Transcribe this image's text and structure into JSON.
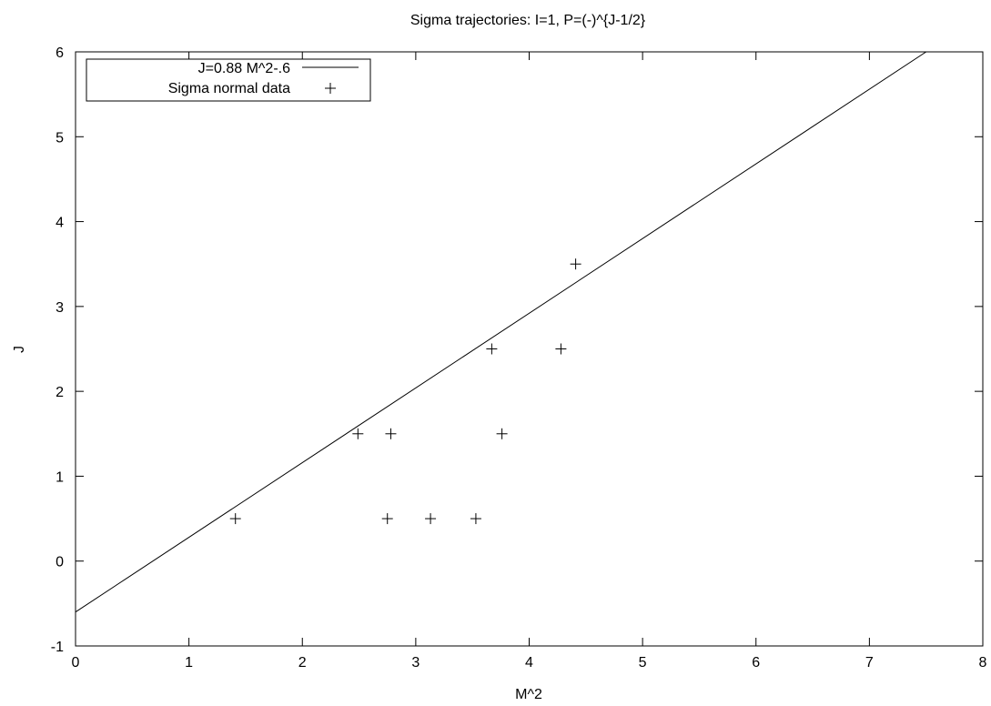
{
  "chart_data": {
    "type": "scatter",
    "title": "Sigma trajectories: I=1, P=(-)^{J-1/2}",
    "xlabel": "M^2",
    "ylabel": "J",
    "xlim": [
      0,
      8
    ],
    "ylim": [
      -1,
      6
    ],
    "x_ticks": [
      0,
      1,
      2,
      3,
      4,
      5,
      6,
      7,
      8
    ],
    "y_ticks": [
      -1,
      0,
      1,
      2,
      3,
      4,
      5,
      6
    ],
    "grid": false,
    "legend_position": "top-left",
    "series": [
      {
        "name": "J=0.88 M^2-.6",
        "kind": "line",
        "slope": 0.88,
        "intercept": -0.6,
        "color": "#000000"
      },
      {
        "name": "Sigma normal data",
        "kind": "points",
        "marker": "+",
        "color": "#000000",
        "points": [
          {
            "x": 1.41,
            "y": 0.5
          },
          {
            "x": 2.49,
            "y": 1.5
          },
          {
            "x": 2.78,
            "y": 1.5
          },
          {
            "x": 2.75,
            "y": 0.5
          },
          {
            "x": 3.13,
            "y": 0.5
          },
          {
            "x": 3.53,
            "y": 0.5
          },
          {
            "x": 3.67,
            "y": 2.5
          },
          {
            "x": 3.76,
            "y": 1.5
          },
          {
            "x": 4.28,
            "y": 2.5
          },
          {
            "x": 4.41,
            "y": 3.5
          }
        ]
      }
    ]
  }
}
